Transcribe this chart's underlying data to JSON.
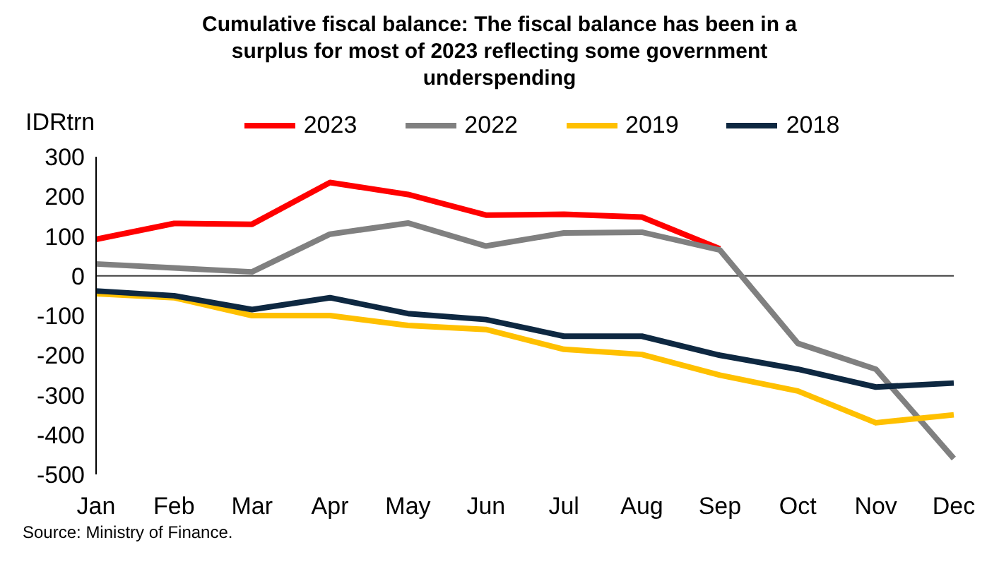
{
  "chart_data": {
    "type": "line",
    "title": "Cumulative fiscal balance: The fiscal balance has been in a surplus for most of 2023 reflecting some government underspending",
    "ylabel": "IDRtrn",
    "annotations": [
      "Source: Ministry of Finance."
    ],
    "categories": [
      "Jan",
      "Feb",
      "Mar",
      "Apr",
      "May",
      "Jun",
      "Jul",
      "Aug",
      "Sep",
      "Oct",
      "Nov",
      "Dec"
    ],
    "series": [
      {
        "name": "2023",
        "color": "#ff0000",
        "values": [
          92,
          132,
          130,
          235,
          205,
          153,
          155,
          148,
          68,
          null,
          null,
          null
        ]
      },
      {
        "name": "2022",
        "color": "#808080",
        "values": [
          30,
          20,
          10,
          105,
          133,
          75,
          108,
          110,
          65,
          -170,
          -235,
          -460
        ]
      },
      {
        "name": "2019",
        "color": "#ffc000",
        "values": [
          -45,
          -55,
          -100,
          -100,
          -125,
          -135,
          -185,
          -198,
          -250,
          -290,
          -370,
          -350
        ]
      },
      {
        "name": "2018",
        "color": "#0e2841",
        "values": [
          -38,
          -50,
          -85,
          -55,
          -95,
          -110,
          -152,
          -152,
          -200,
          -235,
          -280,
          -270
        ]
      }
    ],
    "ylim": [
      -500,
      300
    ],
    "yticks": [
      -500,
      -400,
      -300,
      -200,
      -100,
      0,
      100,
      200,
      300
    ],
    "ref_lines": [
      {
        "axis": "y",
        "value": 0,
        "color": "#404040"
      }
    ],
    "legend": "top",
    "marker": "none",
    "line_style": "solid"
  }
}
